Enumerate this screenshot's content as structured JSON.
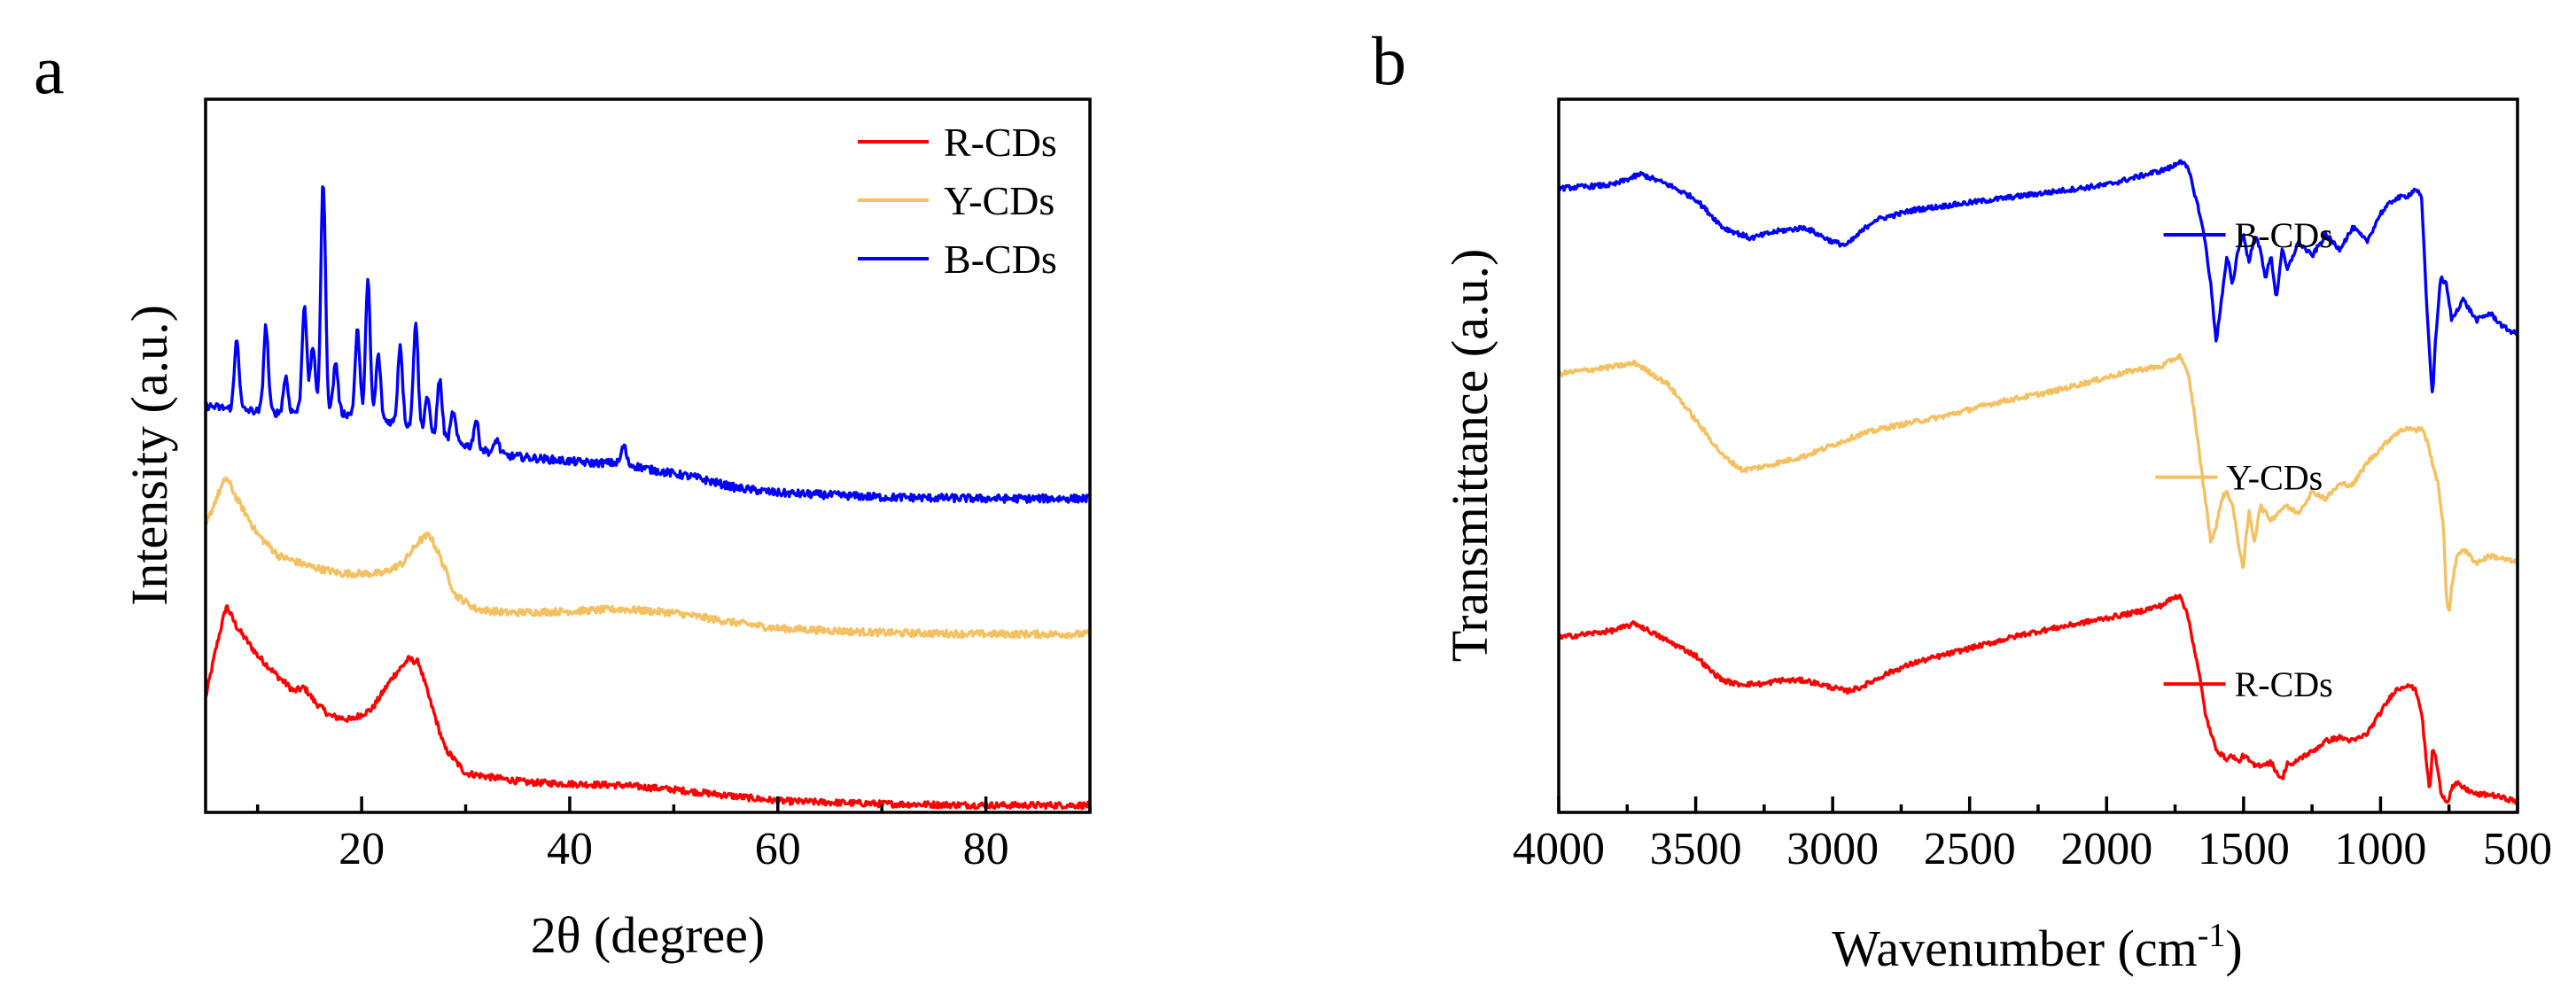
{
  "chart_data": [
    {
      "panel": "a",
      "type": "line",
      "xlabel": "2θ (degree)",
      "ylabel": "Intensity (a.u.)",
      "xlim": [
        5,
        90
      ],
      "ylim": [
        0,
        100
      ],
      "xticks": [
        20,
        40,
        60,
        80
      ],
      "tick_labels": [
        "20",
        "40",
        "60",
        "80"
      ],
      "yticks_shown": false,
      "legend_position": "top-right",
      "legend": [
        "R-CDs",
        "Y-CDs",
        "B-CDs"
      ],
      "series": [
        {
          "name": "R-CDs",
          "color": "#ff0000",
          "baseline": 1.5,
          "noise": 0.45,
          "x": [
            5,
            6,
            7,
            8,
            10,
            12,
            13.5,
            14.5,
            15.5,
            17,
            19,
            21,
            23,
            24.5,
            25.5,
            26.5,
            28,
            30,
            33,
            36,
            40,
            45,
            50,
            55,
            60,
            70,
            80,
            90
          ],
          "y": [
            16,
            23,
            29,
            26,
            22,
            19,
            17,
            17.5,
            15.5,
            13.5,
            13,
            14.5,
            19,
            21.5,
            21,
            16,
            9,
            5.5,
            4.8,
            4.2,
            4,
            3.8,
            3.2,
            2.4,
            1.6,
            1.2,
            1,
            1
          ]
        },
        {
          "name": "Y-CDs",
          "color": "#f5c060",
          "baseline": 25,
          "noise": 0.5,
          "x": [
            5,
            6,
            7,
            8,
            10,
            12,
            15,
            18,
            20,
            22,
            24,
            25.5,
            26.5,
            27.5,
            29,
            31,
            34,
            40,
            45,
            50,
            55,
            60,
            70,
            80,
            90
          ],
          "y": [
            40,
            44,
            47,
            44,
            39,
            36,
            34.5,
            33.5,
            33.5,
            33.5,
            35,
            38,
            39,
            36,
            30.5,
            28.5,
            28,
            28.2,
            28.5,
            28,
            26.8,
            25.8,
            25.2,
            25,
            25
          ]
        },
        {
          "name": "B-CDs",
          "color": "#0000ff",
          "baseline": 44,
          "noise": 0.55,
          "x": [
            5,
            8,
            12,
            16,
            20,
            24,
            27,
            29,
            31,
            34,
            38,
            42,
            45,
            48,
            52,
            56,
            60,
            70,
            80,
            90
          ],
          "y": [
            57,
            56.5,
            56,
            56.5,
            55.5,
            54.5,
            53,
            52,
            51,
            50,
            49.5,
            49,
            49,
            48,
            47,
            45.5,
            44.8,
            44.2,
            44,
            44
          ],
          "peaks": [
            {
              "x": 8,
              "h": 10
            },
            {
              "x": 10.8,
              "h": 12
            },
            {
              "x": 12.7,
              "h": 5
            },
            {
              "x": 14.5,
              "h": 15
            },
            {
              "x": 15.3,
              "h": 9
            },
            {
              "x": 16.3,
              "h": 32
            },
            {
              "x": 17.5,
              "h": 7
            },
            {
              "x": 19.6,
              "h": 12
            },
            {
              "x": 20.6,
              "h": 19
            },
            {
              "x": 21.6,
              "h": 9
            },
            {
              "x": 23.7,
              "h": 11
            },
            {
              "x": 25.2,
              "h": 15
            },
            {
              "x": 26.3,
              "h": 5
            },
            {
              "x": 27.5,
              "h": 8
            },
            {
              "x": 28.8,
              "h": 4
            },
            {
              "x": 31,
              "h": 4
            },
            {
              "x": 33,
              "h": 2
            },
            {
              "x": 45.2,
              "h": 2.5
            }
          ]
        }
      ]
    },
    {
      "panel": "b",
      "type": "line",
      "xlabel": "Wavenumber (cm",
      "xlabel_sup": "-1",
      "xlabel_end": ")",
      "ylabel": "Transmittance (a.u.)",
      "xlim": [
        4000,
        500
      ],
      "ylim": [
        0,
        100
      ],
      "xticks": [
        4000,
        3500,
        3000,
        2500,
        2000,
        1500,
        1000,
        500
      ],
      "tick_labels": [
        "4000",
        "3500",
        "3000",
        "2500",
        "2000",
        "1500",
        "1000",
        "500"
      ],
      "yticks_shown": false,
      "series": [
        {
          "name": "B-CDs",
          "color": "#0000ff",
          "noise": 0.35,
          "x": [
            4000,
            3800,
            3700,
            3600,
            3500,
            3400,
            3300,
            3200,
            3100,
            3000,
            2950,
            2850,
            2700,
            2300,
            2000,
            1900,
            1800,
            1760,
            1730,
            1700,
            1680,
            1660,
            1640,
            1620,
            1600,
            1580,
            1560,
            1540,
            1520,
            1500,
            1480,
            1460,
            1440,
            1420,
            1400,
            1380,
            1360,
            1340,
            1300,
            1250,
            1200,
            1150,
            1100,
            1050,
            1000,
            950,
            900,
            870,
            850,
            830,
            810,
            800,
            780,
            760,
            740,
            700,
            650,
            600,
            550,
            500
          ],
          "y": [
            87.5,
            88,
            89.5,
            88,
            86,
            82,
            80.5,
            81.5,
            82,
            80,
            79.5,
            83,
            84.5,
            86.5,
            88,
            89,
            90,
            90.5,
            91.5,
            90,
            87,
            84,
            80,
            74,
            66,
            72,
            78,
            74,
            79,
            81,
            77,
            81,
            79,
            75,
            78,
            72,
            79,
            76,
            80,
            78,
            81,
            79,
            82,
            80,
            84,
            86,
            86.5,
            87.5,
            86,
            70,
            58,
            66,
            75,
            74,
            69,
            72,
            69,
            70,
            68,
            67
          ]
        },
        {
          "name": "Y-CDs",
          "color": "#f5c060",
          "noise": 0.35,
          "x": [
            4000,
            3900,
            3800,
            3720,
            3600,
            3500,
            3400,
            3330,
            3250,
            3200,
            3100,
            3000,
            2900,
            2800,
            2600,
            2400,
            2200,
            2000,
            1900,
            1800,
            1760,
            1730,
            1700,
            1680,
            1660,
            1640,
            1620,
            1600,
            1580,
            1560,
            1540,
            1520,
            1500,
            1490,
            1480,
            1460,
            1440,
            1400,
            1350,
            1300,
            1250,
            1200,
            1150,
            1100,
            1050,
            1000,
            950,
            900,
            870,
            850,
            830,
            810,
            790,
            770,
            760,
            750,
            740,
            720,
            700,
            650,
            600,
            550,
            500
          ],
          "y": [
            61.5,
            62,
            62.5,
            63,
            60,
            55,
            50,
            48,
            48.5,
            49,
            50,
            51.5,
            53,
            54,
            55.5,
            57.5,
            59,
            61,
            62,
            62.5,
            63.5,
            64,
            61,
            56,
            50,
            44,
            38,
            40,
            44,
            45,
            43,
            38,
            34,
            39,
            42,
            38,
            43,
            41,
            43,
            42,
            45,
            44,
            46,
            46,
            49,
            51,
            53,
            54,
            53.5,
            54,
            52,
            49,
            46,
            40,
            30,
            28,
            32,
            36,
            37,
            35,
            36,
            35.5,
            35
          ]
        },
        {
          "name": "R-CDs",
          "color": "#ff0000",
          "noise": 0.35,
          "x": [
            4000,
            3900,
            3800,
            3720,
            3650,
            3600,
            3500,
            3450,
            3400,
            3350,
            3300,
            3250,
            3200,
            3100,
            3000,
            2950,
            2900,
            2800,
            2700,
            2500,
            2300,
            2100,
            1900,
            1800,
            1760,
            1730,
            1700,
            1680,
            1660,
            1640,
            1620,
            1600,
            1580,
            1560,
            1540,
            1520,
            1500,
            1460,
            1400,
            1360,
            1340,
            1320,
            1300,
            1250,
            1200,
            1150,
            1100,
            1050,
            1000,
            950,
            900,
            870,
            850,
            830,
            820,
            810,
            800,
            780,
            760,
            750,
            740,
            720,
            700,
            650,
            600,
            550,
            500
          ],
          "y": [
            24.5,
            25,
            25.5,
            26.5,
            25,
            24,
            22,
            20,
            18.5,
            18,
            18,
            18,
            18.5,
            18.5,
            17.5,
            17,
            17.5,
            19.5,
            21,
            23,
            25,
            26.5,
            28,
            29,
            30,
            30.5,
            27,
            23,
            19,
            14,
            11,
            9,
            8,
            7.5,
            8,
            7,
            8,
            6.5,
            7,
            4.5,
            7,
            6.5,
            7.5,
            8.5,
            10,
            10.5,
            10,
            11,
            14,
            17,
            18,
            17,
            14,
            6,
            3,
            9,
            8,
            3,
            1.5,
            2,
            3.5,
            4,
            3.5,
            2.5,
            2.5,
            2,
            1.5
          ]
        }
      ],
      "curve_labels": [
        {
          "name": "B-CDs",
          "x": 1420,
          "y": 81
        },
        {
          "name": "Y-CDs",
          "x": 1450,
          "y": 47
        },
        {
          "name": "R-CDs",
          "x": 1420,
          "y": 18
        }
      ]
    }
  ]
}
